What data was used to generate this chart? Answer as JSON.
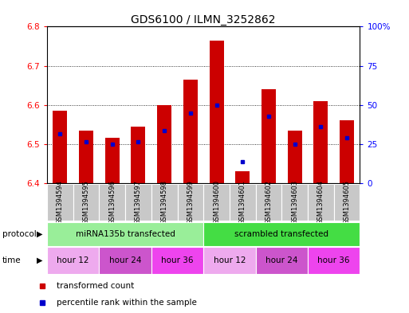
{
  "title": "GDS6100 / ILMN_3252862",
  "samples": [
    "GSM1394594",
    "GSM1394595",
    "GSM1394596",
    "GSM1394597",
    "GSM1394598",
    "GSM1394599",
    "GSM1394600",
    "GSM1394601",
    "GSM1394602",
    "GSM1394603",
    "GSM1394604",
    "GSM1394605"
  ],
  "bar_bottoms": [
    6.4,
    6.4,
    6.4,
    6.4,
    6.4,
    6.4,
    6.4,
    6.4,
    6.4,
    6.4,
    6.4,
    6.4
  ],
  "bar_tops": [
    6.585,
    6.535,
    6.515,
    6.545,
    6.6,
    6.665,
    6.765,
    6.43,
    6.64,
    6.535,
    6.61,
    6.56
  ],
  "percentile_values": [
    6.525,
    6.505,
    6.5,
    6.505,
    6.535,
    6.578,
    6.6,
    6.455,
    6.57,
    6.5,
    6.545,
    6.515
  ],
  "ylim": [
    6.4,
    6.8
  ],
  "yticks_left": [
    6.4,
    6.5,
    6.6,
    6.7,
    6.8
  ],
  "yticks_right": [
    0,
    25,
    50,
    75,
    100
  ],
  "bar_color": "#cc0000",
  "dot_color": "#0000cc",
  "protocol_groups": [
    {
      "label": "miRNA135b transfected",
      "start": 0,
      "end": 6,
      "color": "#99ee99"
    },
    {
      "label": "scrambled transfected",
      "start": 6,
      "end": 12,
      "color": "#44dd44"
    }
  ],
  "time_groups": [
    {
      "label": "hour 12",
      "start": 0,
      "end": 2,
      "color": "#eeaaee"
    },
    {
      "label": "hour 24",
      "start": 2,
      "end": 4,
      "color": "#cc55cc"
    },
    {
      "label": "hour 36",
      "start": 4,
      "end": 6,
      "color": "#ee44ee"
    },
    {
      "label": "hour 12",
      "start": 6,
      "end": 8,
      "color": "#eeaaee"
    },
    {
      "label": "hour 24",
      "start": 8,
      "end": 10,
      "color": "#cc55cc"
    },
    {
      "label": "hour 36",
      "start": 10,
      "end": 12,
      "color": "#ee44ee"
    }
  ],
  "title_fontsize": 10,
  "tick_fontsize": 7.5,
  "sample_fontsize": 6,
  "label_fontsize": 7.5,
  "bar_width": 0.55,
  "xlim_left": -0.5,
  "xlim_right": 11.5
}
